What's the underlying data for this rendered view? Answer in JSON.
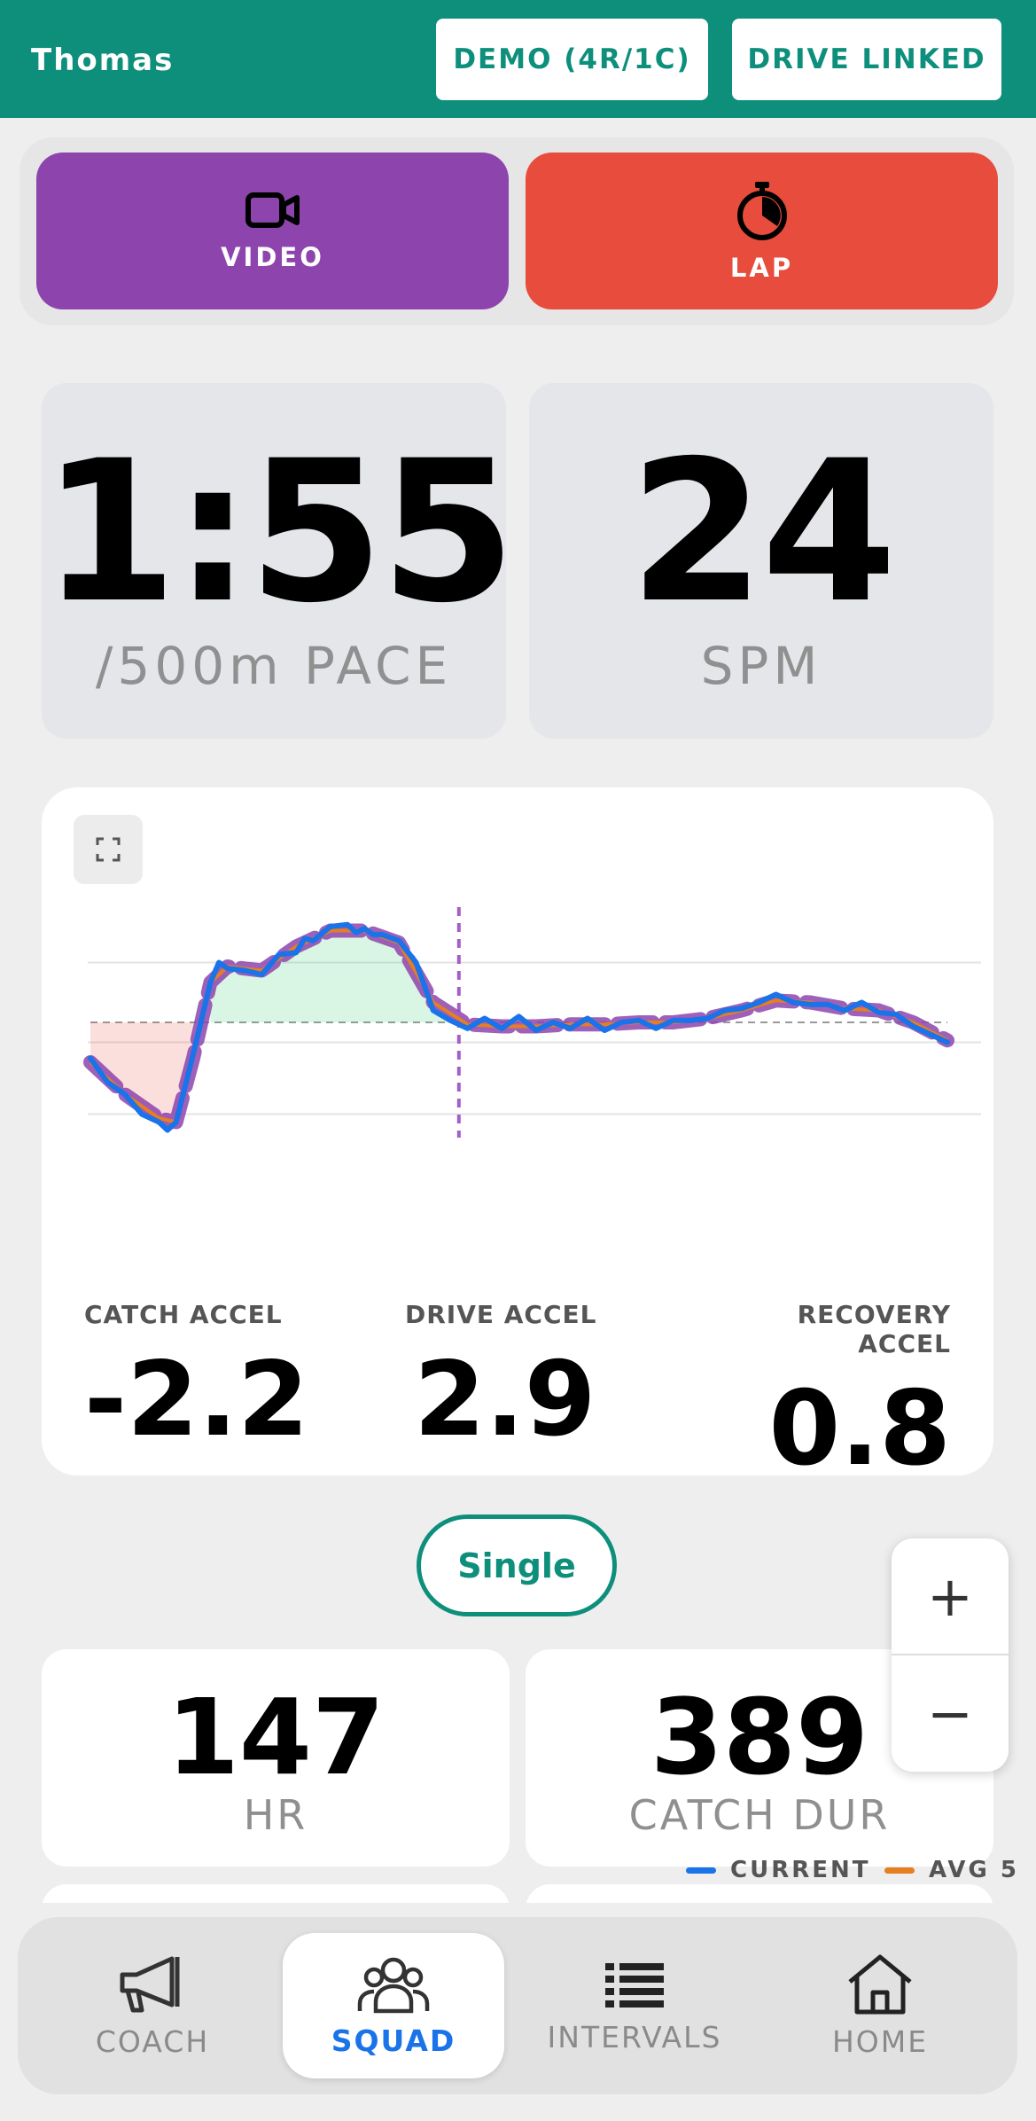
{
  "header": {
    "user": "Thomas",
    "demo_button": "DEMO (4R/1C)",
    "drive_button": "DRIVE LINKED"
  },
  "actions": {
    "video": "VIDEO",
    "lap": "LAP",
    "video_color": "#8e44ad",
    "lap_color": "#e74c3c"
  },
  "primary": {
    "pace_value": "1:55",
    "pace_label": "/500m PACE",
    "spm_value": "24",
    "spm_label": "SPM"
  },
  "chart_metrics": {
    "catch_label": "CATCH ACCEL",
    "catch_value": "-2.2",
    "drive_label": "DRIVE ACCEL",
    "drive_value": "2.9",
    "recovery_label": "RECOVERY ACCEL",
    "recovery_value": "0.8"
  },
  "mode_button": "Single",
  "secondary": {
    "hr_value": "147",
    "hr_label": "HR",
    "catch_dur_value": "389",
    "catch_dur_label": "CATCH DUR"
  },
  "zoom": {
    "plus": "+",
    "minus": "−"
  },
  "legend": {
    "current": "CURRENT",
    "avg": "AVG 5",
    "current_color": "#1a73e8",
    "avg_color": "#e67e22"
  },
  "nav": {
    "items": [
      {
        "label": "COACH",
        "icon": "megaphone-icon"
      },
      {
        "label": "SQUAD",
        "icon": "users-icon"
      },
      {
        "label": "INTERVALS",
        "icon": "list-icon"
      },
      {
        "label": "HOME",
        "icon": "home-icon"
      }
    ],
    "active": "SQUAD"
  },
  "chart_data": {
    "type": "line",
    "title": "",
    "xlabel": "",
    "ylabel": "",
    "grid": true,
    "xlim": [
      0,
      100
    ],
    "ylim": [
      -3,
      3
    ],
    "baseline": 0,
    "drive_end_marker_x": 43,
    "series": [
      {
        "name": "CURRENT",
        "x": [
          0,
          2,
          4,
          6,
          8,
          9,
          10,
          12,
          14,
          15,
          16,
          18,
          20,
          22,
          24,
          25,
          26,
          28,
          30,
          31,
          32,
          33,
          34,
          36,
          38,
          40,
          42,
          44,
          46,
          48,
          50,
          52,
          54,
          56,
          58,
          60,
          62,
          64,
          66,
          68,
          70,
          72,
          74,
          76,
          78,
          80,
          82,
          84,
          86,
          88,
          90,
          92,
          94,
          96,
          98,
          100
        ],
        "y": [
          -0.9,
          -1.5,
          -1.8,
          -2.3,
          -2.5,
          -2.7,
          -2.5,
          -0.8,
          1.0,
          1.5,
          1.35,
          1.3,
          1.2,
          1.7,
          1.75,
          2.1,
          2.05,
          2.4,
          2.45,
          2.25,
          2.35,
          2.2,
          2.2,
          2.05,
          1.5,
          0.3,
          0.05,
          -0.15,
          0.1,
          -0.15,
          0.15,
          -0.2,
          0.0,
          -0.15,
          0.1,
          -0.2,
          0.0,
          0.05,
          -0.15,
          0.05,
          0.05,
          0.1,
          0.3,
          0.35,
          0.5,
          0.7,
          0.5,
          0.45,
          0.45,
          0.3,
          0.5,
          0.25,
          0.2,
          -0.1,
          -0.3,
          -0.5
        ]
      },
      {
        "name": "AVG 5",
        "x": [
          0,
          4,
          8,
          10,
          12,
          14,
          16,
          20,
          24,
          28,
          32,
          36,
          40,
          44,
          48,
          52,
          56,
          60,
          64,
          68,
          72,
          76,
          80,
          84,
          88,
          92,
          96,
          100
        ],
        "y": [
          -1.0,
          -1.8,
          -2.4,
          -2.5,
          -0.9,
          1.0,
          1.4,
          1.3,
          1.9,
          2.3,
          2.3,
          2.0,
          0.5,
          -0.05,
          -0.1,
          -0.1,
          -0.05,
          -0.05,
          0.0,
          0.0,
          0.1,
          0.3,
          0.55,
          0.5,
          0.35,
          0.3,
          0.0,
          -0.45
        ]
      }
    ]
  }
}
